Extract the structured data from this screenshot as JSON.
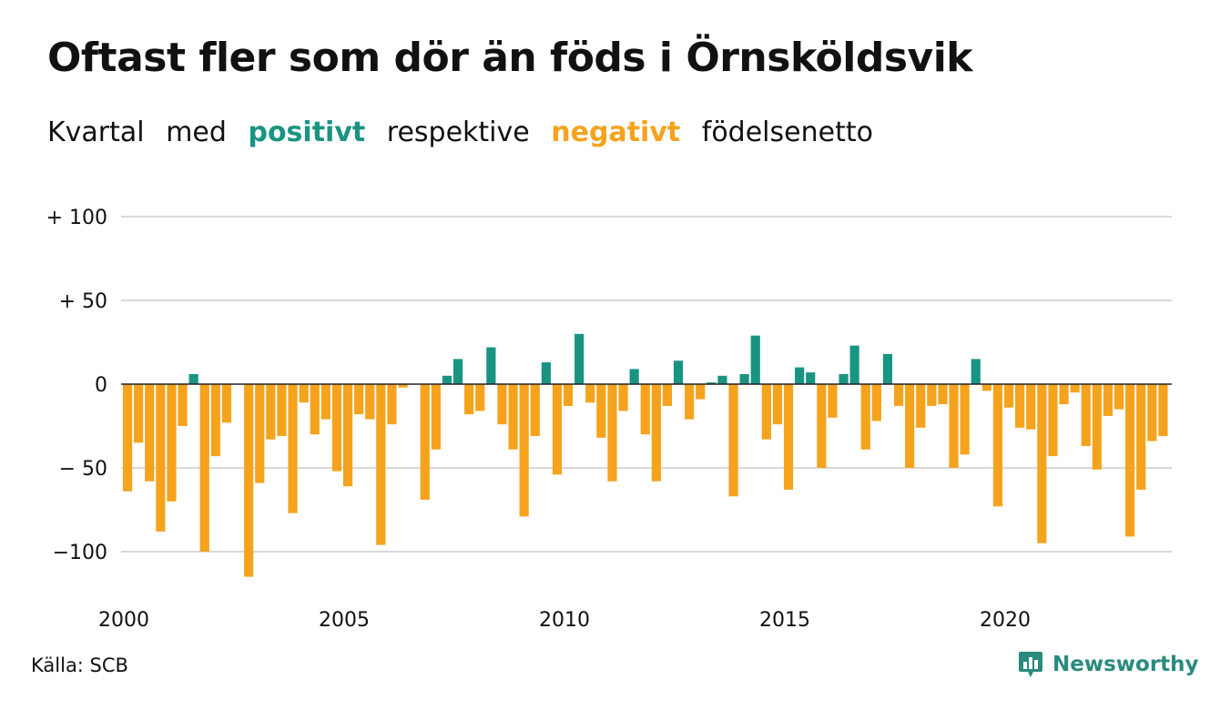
{
  "title": "Oftast fler som dör än föds i Örnsköldsvik",
  "subtitle": {
    "part1": "Kvartal",
    "part2": "med",
    "positive": "positivt",
    "part3": "respektive",
    "negative": "negativt",
    "part4": "födelsenetto"
  },
  "source": "Källa: SCB",
  "brand": "Newsworthy",
  "colors": {
    "positive": "#1a9482",
    "negative": "#f5a31d",
    "grid": "#d9d9d9",
    "text": "#111111",
    "brand": "#2a8a7e"
  },
  "chart_data": {
    "type": "bar",
    "ylim": [
      -115,
      100
    ],
    "yticks": [
      {
        "value": 100,
        "label": "+ 100"
      },
      {
        "value": 50,
        "label": "+  50"
      },
      {
        "value": 0,
        "label": "0"
      },
      {
        "value": -50,
        "label": "− 50"
      },
      {
        "value": -100,
        "label": "−100"
      }
    ],
    "xticks": [
      "2000",
      "2005",
      "2010",
      "2015",
      "2020"
    ],
    "start_year": 2000,
    "grid": true,
    "legend": "none",
    "values": [
      -64,
      -35,
      -58,
      -88,
      -70,
      -25,
      6,
      -100,
      -43,
      -23,
      0,
      -115,
      -59,
      -33,
      -31,
      -77,
      -11,
      -30,
      -21,
      -52,
      -61,
      -18,
      -21,
      -96,
      -24,
      -2,
      0,
      -69,
      -39,
      5,
      15,
      -18,
      -16,
      22,
      -24,
      -39,
      -79,
      -31,
      13,
      -54,
      -13,
      30,
      -11,
      -32,
      -58,
      -16,
      9,
      -30,
      -58,
      -13,
      14,
      -21,
      -9,
      1,
      5,
      -67,
      6,
      29,
      -33,
      -24,
      -63,
      10,
      7,
      -50,
      -20,
      6,
      23,
      -39,
      -22,
      18,
      -13,
      -50,
      -26,
      -13,
      -12,
      -50,
      -42,
      15,
      -4,
      -73,
      -14,
      -26,
      -27,
      -95,
      -43,
      -12,
      -5,
      -37,
      -51,
      -19,
      -15,
      -91,
      -63,
      -34,
      -31
    ]
  }
}
